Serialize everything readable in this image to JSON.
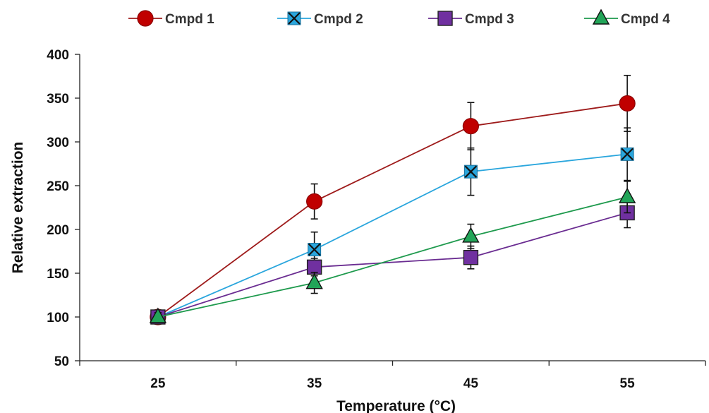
{
  "chart_data": {
    "type": "line",
    "xlabel": "Temperature (°C)",
    "ylabel": "Relative extraction",
    "x": [
      25,
      35,
      45,
      55
    ],
    "xlim": [
      20,
      60
    ],
    "ylim": [
      50,
      400
    ],
    "yticks": [
      50,
      100,
      150,
      200,
      250,
      300,
      350,
      400
    ],
    "grid": false,
    "legend_position": "top",
    "series": [
      {
        "name": "Cmpd 1",
        "marker": "circle",
        "color": "#c00000",
        "line_color": "#9e1b1b",
        "values": [
          100,
          232,
          318,
          344
        ],
        "errors": [
          8,
          20,
          27,
          32
        ]
      },
      {
        "name": "Cmpd 2",
        "marker": "x-square",
        "color": "#2aa6dd",
        "line_color": "#2aa6dd",
        "values": [
          100,
          177,
          266,
          286
        ],
        "errors": [
          6,
          20,
          27,
          30
        ]
      },
      {
        "name": "Cmpd 3",
        "marker": "square",
        "color": "#7030a0",
        "line_color": "#6a2c91",
        "values": [
          100,
          157,
          168,
          219
        ],
        "errors": [
          6,
          10,
          13,
          17
        ]
      },
      {
        "name": "Cmpd 4",
        "marker": "triangle",
        "color": "#22a558",
        "line_color": "#1e9a4d",
        "values": [
          100,
          139,
          192,
          237
        ],
        "errors": [
          5,
          12,
          14,
          18
        ]
      }
    ]
  }
}
